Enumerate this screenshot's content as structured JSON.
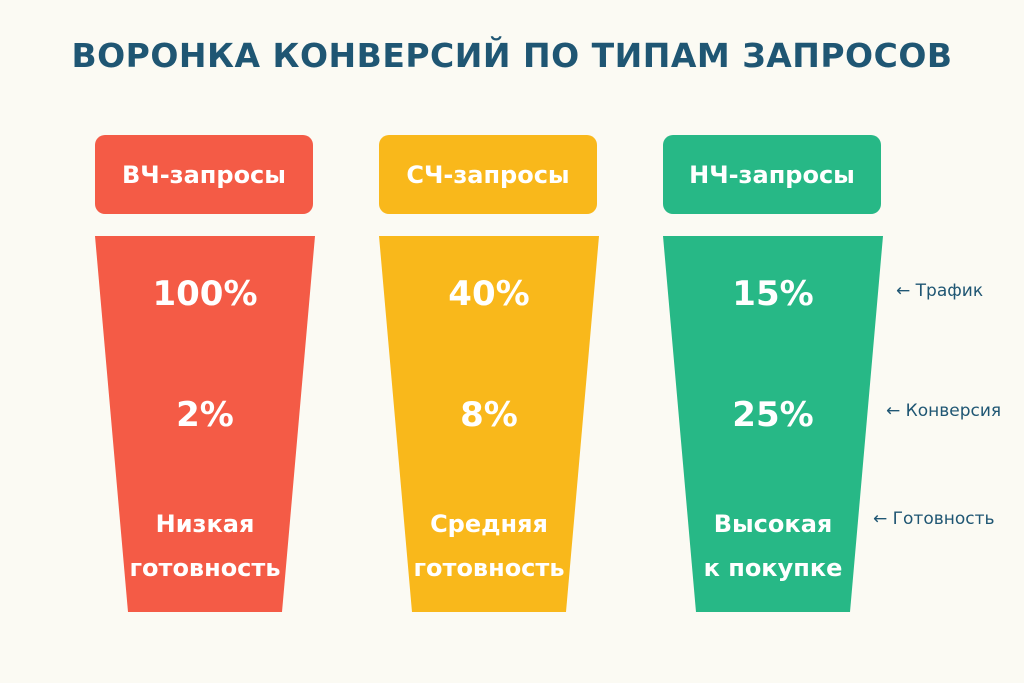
{
  "title": "ВОРОНКА КОНВЕРСИЙ ПО ТИПАМ ЗАПРОСОВ",
  "columns": [
    {
      "header": "ВЧ-запросы",
      "traffic": "100%",
      "conversion": "2%",
      "readiness_line1": "Низкая",
      "readiness_line2": "готовность",
      "color": "#f45b46"
    },
    {
      "header": "СЧ-запросы",
      "traffic": "40%",
      "conversion": "8%",
      "readiness_line1": "Средняя",
      "readiness_line2": "готовность",
      "color": "#f9b81b"
    },
    {
      "header": "НЧ-запросы",
      "traffic": "15%",
      "conversion": "25%",
      "readiness_line1": "Высокая",
      "readiness_line2": "к покупке",
      "color": "#27b886"
    }
  ],
  "side_labels": {
    "traffic": "← Трафик",
    "conversion": "← Конверсия",
    "readiness": "← Готовность"
  },
  "colors": {
    "title": "#1f5673",
    "background": "#fbfaf3"
  }
}
